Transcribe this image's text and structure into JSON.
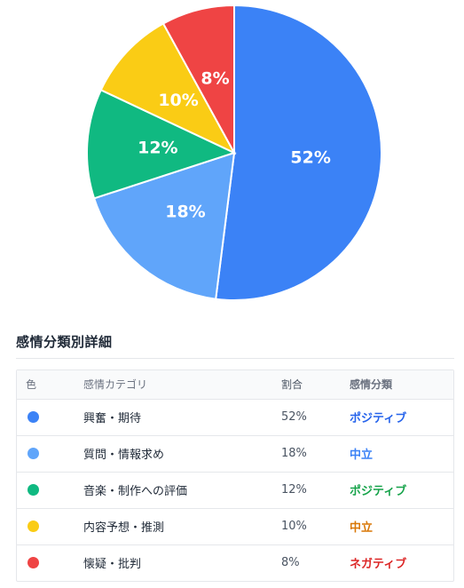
{
  "chart_data": {
    "type": "pie",
    "slices": [
      {
        "label": "興奮・期待",
        "value": 52,
        "display": "52%",
        "color": "#3b82f6"
      },
      {
        "label": "質問・情報求め",
        "value": 18,
        "display": "18%",
        "color": "#60a5fa"
      },
      {
        "label": "音楽・制作への評価",
        "value": 12,
        "display": "12%",
        "color": "#10b981"
      },
      {
        "label": "内容予想・推測",
        "value": 10,
        "display": "10%",
        "color": "#facc15"
      },
      {
        "label": "懐疑・批判",
        "value": 8,
        "display": "8%",
        "color": "#ef4444"
      }
    ]
  },
  "section_title": "感情分類別詳細",
  "table": {
    "headers": {
      "color": "色",
      "category": "感情カテゴリ",
      "ratio": "割合",
      "sentiment": "感情分類"
    },
    "rows": [
      {
        "dot_color": "#3b82f6",
        "category": "興奮・期待",
        "ratio": "52%",
        "sentiment": "ポジティブ",
        "sentiment_color": "#2563eb"
      },
      {
        "dot_color": "#60a5fa",
        "category": "質問・情報求め",
        "ratio": "18%",
        "sentiment": "中立",
        "sentiment_color": "#3b82f6"
      },
      {
        "dot_color": "#10b981",
        "category": "音楽・制作への評価",
        "ratio": "12%",
        "sentiment": "ポジティブ",
        "sentiment_color": "#16a34a"
      },
      {
        "dot_color": "#facc15",
        "category": "内容予想・推測",
        "ratio": "10%",
        "sentiment": "中立",
        "sentiment_color": "#d97706"
      },
      {
        "dot_color": "#ef4444",
        "category": "懐疑・批判",
        "ratio": "8%",
        "sentiment": "ネガティブ",
        "sentiment_color": "#dc2626"
      }
    ]
  }
}
